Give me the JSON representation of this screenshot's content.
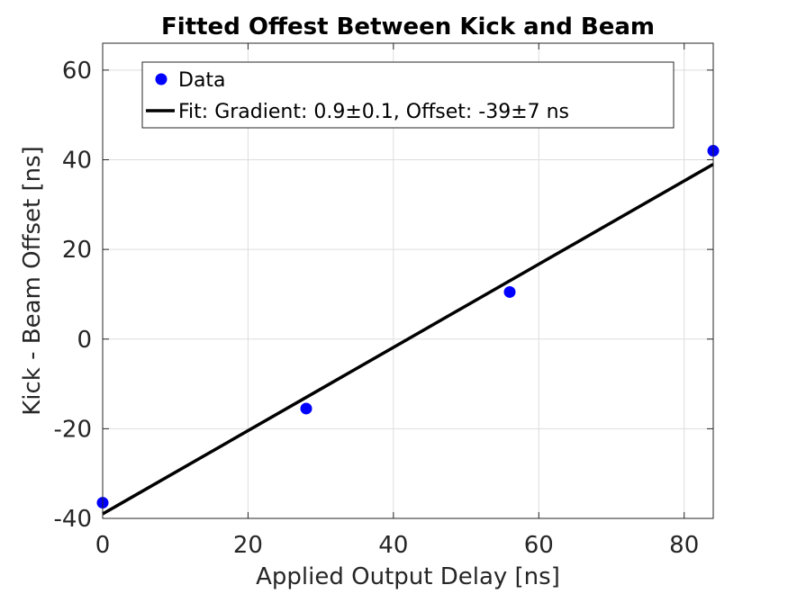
{
  "chart_data": {
    "type": "scatter",
    "title": "Fitted Offest Between Kick and Beam",
    "xlabel": "Applied Output Delay [ns]",
    "ylabel": "Kick - Beam Offset [ns]",
    "xlim": [
      0,
      84
    ],
    "ylim": [
      -40,
      66
    ],
    "xticks": [
      0,
      20,
      40,
      60,
      80
    ],
    "yticks": [
      -40,
      -20,
      0,
      20,
      40,
      60
    ],
    "grid": true,
    "legend_position": "top",
    "series": [
      {
        "name": "Data",
        "kind": "scatter",
        "color": "#0000ff",
        "x": [
          0,
          28,
          56,
          84
        ],
        "y": [
          -36.5,
          -15.5,
          10.5,
          42
        ]
      },
      {
        "name": "Fit: Gradient: 0.9±0.1, Offset: -39±7 ns",
        "kind": "line",
        "color": "#000000",
        "x": [
          0,
          84
        ],
        "y": [
          -39,
          39
        ]
      }
    ]
  }
}
